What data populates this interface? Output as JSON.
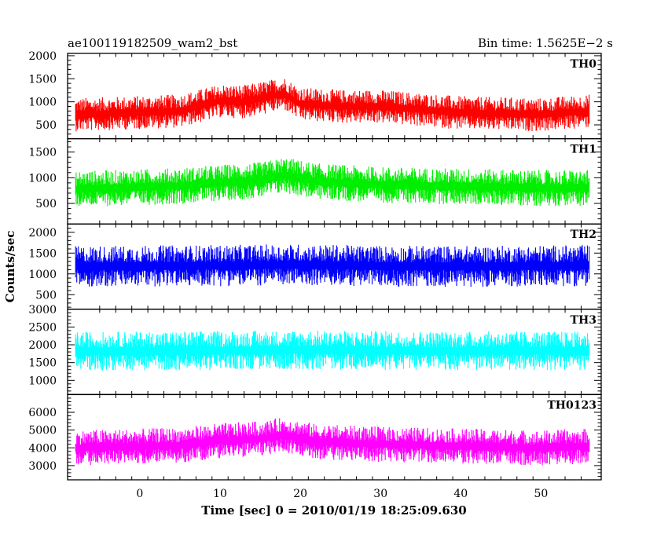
{
  "chart_data": {
    "type": "line",
    "title": "ae100119182509_wam2_bst",
    "bin_time_label": "Bin time: 1.5625E−2 s",
    "xlabel": "Time [sec] 0 = 2010/01/19 18:25:09.630",
    "ylabel": "Counts/sec",
    "xlim": [
      -9,
      57.5
    ],
    "data_x_range": [
      -8,
      56
    ],
    "xticks": [
      0,
      10,
      20,
      30,
      40,
      50
    ],
    "grid": false,
    "panels": [
      {
        "name": "TH0",
        "color": "#ff0000",
        "ylim": [
          200,
          2050
        ],
        "yticks": [
          500,
          1000,
          1500,
          2000
        ],
        "trend": [
          [
            -8,
            720
          ],
          [
            5,
            800
          ],
          [
            10,
            1020
          ],
          [
            13,
            1000
          ],
          [
            18,
            1180
          ],
          [
            20,
            950
          ],
          [
            25,
            900
          ],
          [
            30,
            900
          ],
          [
            40,
            760
          ],
          [
            50,
            720
          ],
          [
            56,
            800
          ]
        ],
        "noise_amplitude": 330
      },
      {
        "name": "TH1",
        "color": "#00ee00",
        "ylim": [
          100,
          1760
        ],
        "yticks": [
          500,
          1000,
          1500
        ],
        "trend": [
          [
            -8,
            780
          ],
          [
            5,
            840
          ],
          [
            10,
            900
          ],
          [
            15,
            950
          ],
          [
            18,
            1050
          ],
          [
            22,
            930
          ],
          [
            30,
            860
          ],
          [
            40,
            830
          ],
          [
            50,
            800
          ],
          [
            56,
            800
          ]
        ],
        "noise_amplitude": 320
      },
      {
        "name": "TH2",
        "color": "#0000ff",
        "ylim": [
          150,
          2200
        ],
        "yticks": [
          500,
          1000,
          1500,
          2000
        ],
        "trend": [
          [
            -8,
            1180
          ],
          [
            10,
            1200
          ],
          [
            20,
            1220
          ],
          [
            30,
            1190
          ],
          [
            40,
            1180
          ],
          [
            56,
            1200
          ]
        ],
        "noise_amplitude": 450
      },
      {
        "name": "TH3",
        "color": "#00ffff",
        "ylim": [
          600,
          3000
        ],
        "yticks": [
          1000,
          1500,
          2000,
          2500,
          3000
        ],
        "trend": [
          [
            -8,
            1820
          ],
          [
            10,
            1840
          ],
          [
            20,
            1860
          ],
          [
            30,
            1840
          ],
          [
            40,
            1830
          ],
          [
            56,
            1830
          ]
        ],
        "noise_amplitude": 500
      },
      {
        "name": "TH0123",
        "color": "#ff00ff",
        "ylim": [
          2200,
          7000
        ],
        "yticks": [
          3000,
          4000,
          5000,
          6000
        ],
        "trend": [
          [
            -8,
            4000
          ],
          [
            5,
            4150
          ],
          [
            10,
            4400
          ],
          [
            15,
            4500
          ],
          [
            18,
            4750
          ],
          [
            22,
            4350
          ],
          [
            30,
            4200
          ],
          [
            40,
            4100
          ],
          [
            50,
            4000
          ],
          [
            56,
            4100
          ]
        ],
        "noise_amplitude": 900
      }
    ]
  }
}
